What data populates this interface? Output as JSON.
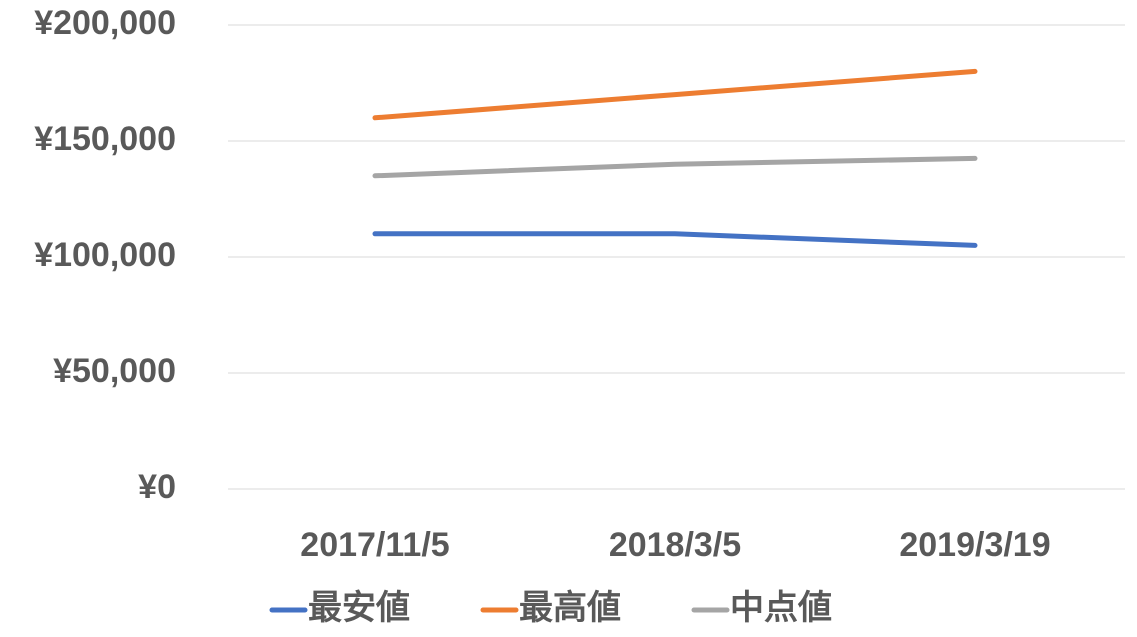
{
  "chart_data": {
    "type": "line",
    "categories": [
      "2017/11/5",
      "2018/3/5",
      "2019/3/19"
    ],
    "series": [
      {
        "name": "最安値",
        "color": "#4472c4",
        "values": [
          110000,
          110000,
          105000
        ]
      },
      {
        "name": "最高値",
        "color": "#ed7d31",
        "values": [
          160000,
          170000,
          180000
        ]
      },
      {
        "name": "中点値",
        "color": "#a5a5a5",
        "values": [
          135000,
          140000,
          142500
        ]
      }
    ],
    "ylim": [
      0,
      200000
    ],
    "yticks": [
      {
        "value": 0,
        "label": "¥0"
      },
      {
        "value": 50000,
        "label": "¥50,000"
      },
      {
        "value": 100000,
        "label": "¥100,000"
      },
      {
        "value": 150000,
        "label": "¥150,000"
      },
      {
        "value": 200000,
        "label": "¥200,000"
      }
    ],
    "grid": true,
    "legend": "bottom"
  }
}
